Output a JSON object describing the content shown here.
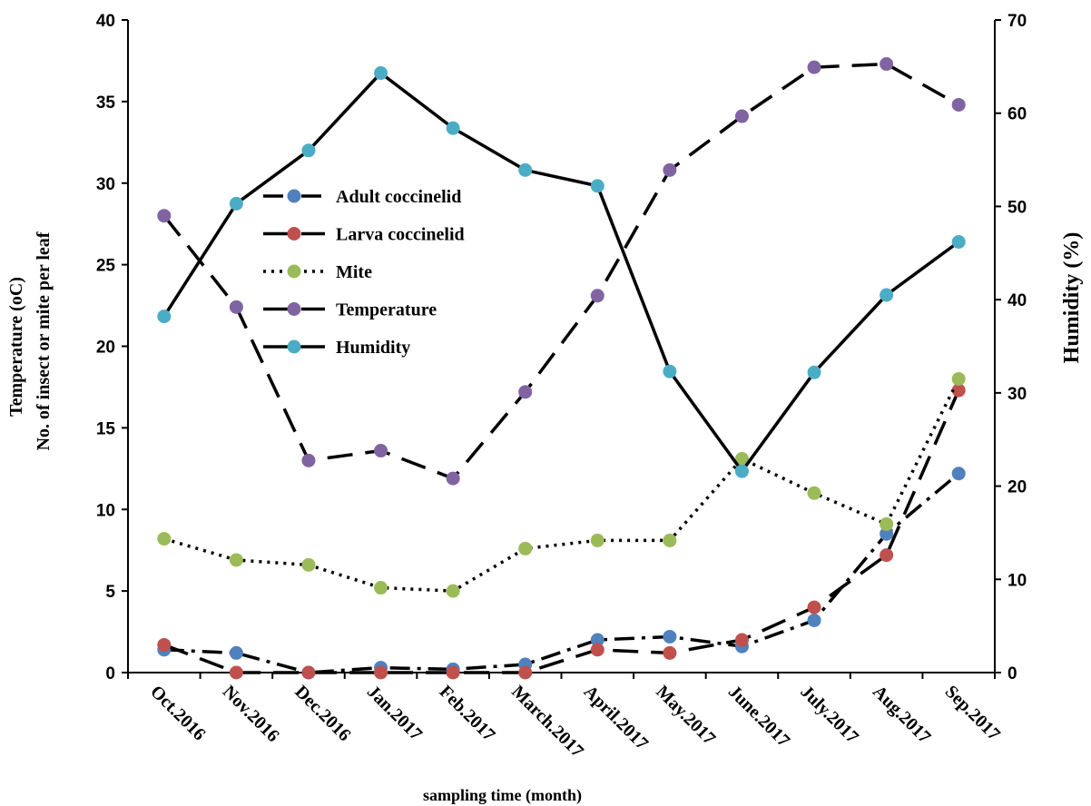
{
  "chart_data": {
    "type": "line",
    "title": "",
    "xlabel": "sampling time (month)",
    "ylabel_left_line1": "Temperature (oC)",
    "ylabel_left_line2": "No. of insect or mite per leaf",
    "ylabel_right": "Humidity (%)",
    "ylim_left": [
      0,
      40
    ],
    "ylim_right": [
      0,
      70
    ],
    "yticks_left": [
      "0",
      "5",
      "10",
      "15",
      "20",
      "25",
      "30",
      "35",
      "40"
    ],
    "yticks_right": [
      "0",
      "10",
      "20",
      "30",
      "40",
      "50",
      "60",
      "70"
    ],
    "grid": false,
    "legend_position": "top-center",
    "categories": [
      "Oct.2016",
      "Nov.2016",
      "Dec.2016",
      "Jan.2017",
      "Feb.2017",
      "March.2017",
      "April.2017",
      "May.2017",
      "June.2017",
      "July.2017",
      "Aug.2017",
      "Sep.2017"
    ],
    "series": [
      {
        "name": "Adult coccinelid",
        "axis": "left",
        "style": "dash-dot",
        "marker_color": "#4f81bd",
        "values": [
          1.4,
          1.2,
          0.0,
          0.3,
          0.2,
          0.5,
          2.0,
          2.2,
          1.6,
          3.2,
          8.5,
          12.2
        ]
      },
      {
        "name": "Larva coccinelid",
        "axis": "left",
        "style": "long-dash",
        "marker_color": "#c0504d",
        "values": [
          1.7,
          0.0,
          0.0,
          0.0,
          0.0,
          0.0,
          1.4,
          1.2,
          2.0,
          4.0,
          7.2,
          17.3
        ]
      },
      {
        "name": "Mite",
        "axis": "left",
        "style": "dotted",
        "marker_color": "#9bbb59",
        "values": [
          8.2,
          6.9,
          6.6,
          5.2,
          5.0,
          7.6,
          8.1,
          8.1,
          13.1,
          11.0,
          9.1,
          18.0
        ]
      },
      {
        "name": "Temperature",
        "axis": "left",
        "style": "long-dash",
        "marker_color": "#8064a2",
        "values": [
          28.0,
          22.4,
          13.0,
          13.6,
          11.9,
          17.2,
          23.1,
          30.8,
          34.1,
          37.1,
          37.3,
          34.8
        ]
      },
      {
        "name": "Humidity",
        "axis": "right",
        "style": "solid",
        "marker_color": "#4bacc6",
        "values": [
          38.2,
          50.3,
          56.0,
          64.3,
          58.4,
          53.9,
          52.2,
          32.3,
          21.6,
          32.2,
          40.5,
          46.2
        ]
      }
    ]
  }
}
